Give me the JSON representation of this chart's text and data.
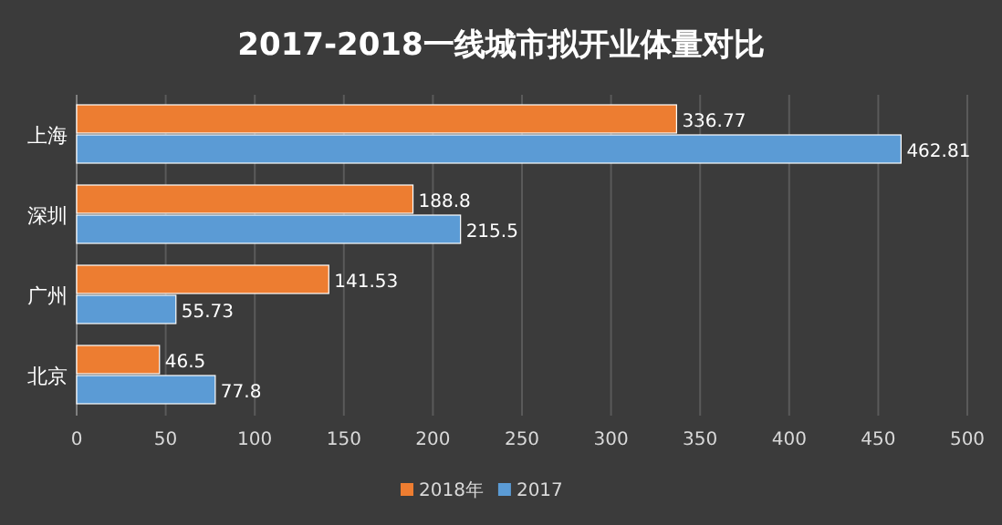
{
  "chart_data": {
    "type": "bar",
    "orientation": "horizontal",
    "title": "2017-2018一线城市拟开业体量对比",
    "categories": [
      "上海",
      "深圳",
      "广州",
      "北京"
    ],
    "series": [
      {
        "name": "2018年",
        "color": "#ed7d31",
        "values": [
          336.77,
          188.8,
          141.53,
          46.5
        ]
      },
      {
        "name": "2017",
        "color": "#5b9bd5",
        "values": [
          462.81,
          215.5,
          55.73,
          77.8
        ]
      }
    ],
    "xlim": [
      0,
      500
    ],
    "xticks": [
      0,
      50,
      100,
      150,
      200,
      250,
      300,
      350,
      400,
      450,
      500
    ],
    "grid": "x",
    "legend": "bottom",
    "data_labels": true
  }
}
